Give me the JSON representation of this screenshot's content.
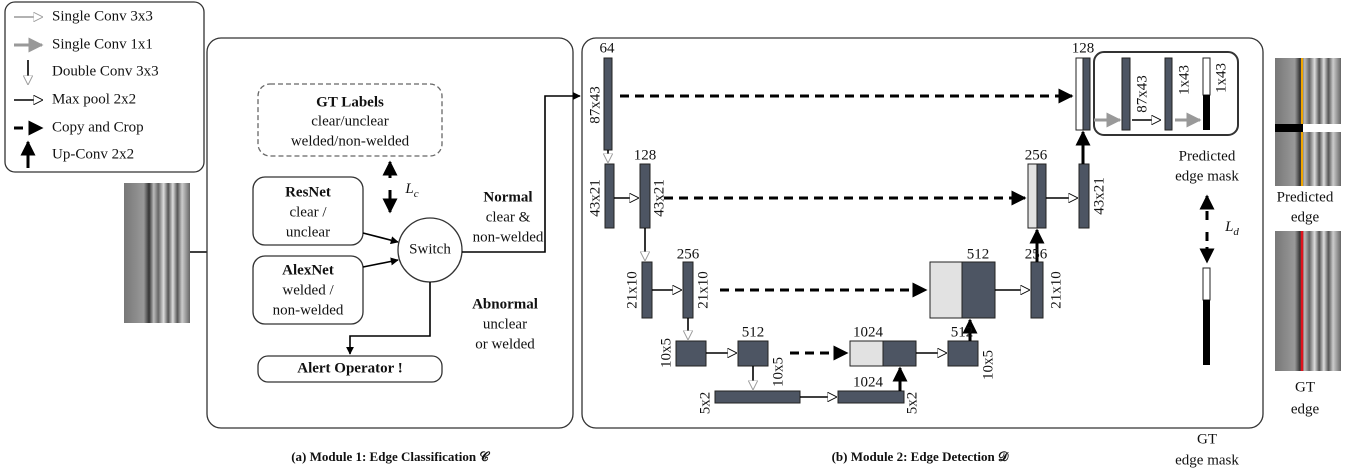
{
  "legend": [
    "Single Conv 3x3",
    "Single Conv 1x1",
    "Double Conv 3x3",
    "Max pool 2x2",
    "Copy and Crop",
    "Up-Conv 2x2"
  ],
  "module1": {
    "gt_labels": [
      "GT Labels",
      "clear/unclear",
      "welded/non-welded"
    ],
    "resnet": [
      "ResNet",
      "clear /",
      "unclear"
    ],
    "alexnet": [
      "AlexNet",
      "welded /",
      "non-welded"
    ],
    "switch": "Switch",
    "loss": "L",
    "loss_sub": "c",
    "normal": [
      "Normal",
      "clear &",
      "non-welded"
    ],
    "abnormal": [
      "Abnormal",
      "unclear",
      "or welded"
    ],
    "alert": "Alert Operator !",
    "caption": "(a) Module 1: Edge Classification 𝒞"
  },
  "module2": {
    "channels": [
      64,
      128,
      256,
      512,
      1024,
      1024,
      512,
      512,
      256,
      256,
      128
    ],
    "sizes": [
      "87x43",
      "43x21",
      "43x21",
      "21x10",
      "21x10",
      "10x5",
      "10x5",
      "5x2",
      "5x2",
      "10x5",
      "21x10",
      "43x21",
      "87x43",
      "1x43",
      "1x43"
    ],
    "predicted_mask": [
      "Predicted",
      "edge mask"
    ],
    "loss": "L",
    "loss_sub": "d",
    "gt_mask": [
      "GT",
      "edge mask"
    ],
    "caption": "(b) Module 2: Edge Detection 𝒟"
  },
  "outputs": {
    "predicted": [
      "Predicted",
      "edge"
    ],
    "gt": [
      "GT",
      "edge"
    ]
  }
}
